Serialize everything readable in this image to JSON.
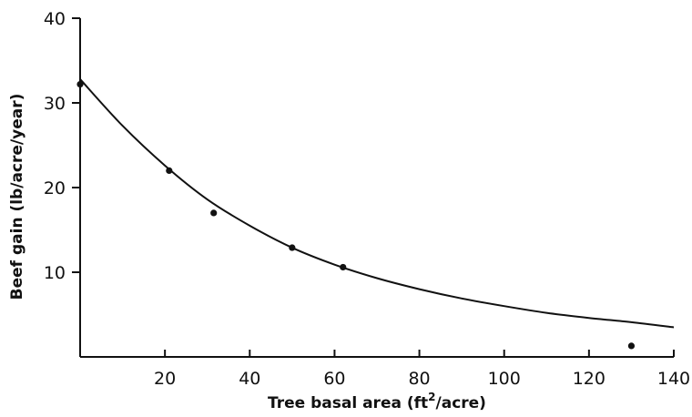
{
  "chart_data": {
    "type": "scatter",
    "xlabel_main": "Tree basal area (ft",
    "xlabel_sup": "2",
    "xlabel_tail": "/acre)",
    "ylabel": "Beef gain (lb/acre/year)",
    "xlim": [
      0,
      140
    ],
    "ylim": [
      0,
      40
    ],
    "x_ticks": [
      20,
      40,
      60,
      80,
      100,
      120,
      140
    ],
    "y_ticks": [
      10,
      20,
      30,
      40
    ],
    "grid": false,
    "points": [
      {
        "x": 0,
        "y": 32.2
      },
      {
        "x": 21,
        "y": 22.0
      },
      {
        "x": 31.5,
        "y": 17.0
      },
      {
        "x": 50,
        "y": 12.9
      },
      {
        "x": 62,
        "y": 10.6
      },
      {
        "x": 130,
        "y": 1.3
      }
    ],
    "fitted_curve": {
      "x": [
        0,
        10,
        20,
        30,
        40,
        50,
        60,
        70,
        80,
        90,
        100,
        110,
        120,
        130,
        140
      ],
      "y": [
        32.8,
        27.3,
        22.6,
        18.6,
        15.5,
        12.9,
        10.9,
        9.3,
        8.0,
        6.9,
        6.0,
        5.2,
        4.6,
        4.1,
        3.5
      ]
    }
  }
}
